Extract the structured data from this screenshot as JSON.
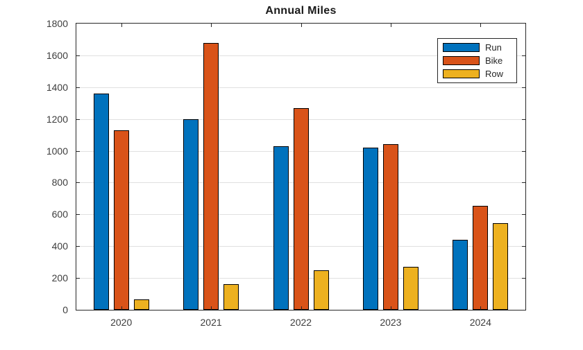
{
  "chart_data": {
    "type": "bar",
    "title": "Annual Miles",
    "categories": [
      "2020",
      "2021",
      "2022",
      "2023",
      "2024"
    ],
    "series": [
      {
        "name": "Run",
        "color": "#0072BD",
        "values": [
          1360,
          1200,
          1030,
          1020,
          440
        ]
      },
      {
        "name": "Bike",
        "color": "#D95319",
        "values": [
          1130,
          1680,
          1270,
          1040,
          655
        ]
      },
      {
        "name": "Row",
        "color": "#EDB120",
        "values": [
          65,
          160,
          250,
          270,
          545
        ]
      }
    ],
    "xlabel": "",
    "ylabel": "",
    "ylim": [
      0,
      1800
    ],
    "yticks": [
      0,
      200,
      400,
      600,
      800,
      1000,
      1200,
      1400,
      1600,
      1800
    ],
    "grid": "horizontal-only",
    "legend": {
      "position": "top-right",
      "entries": [
        "Run",
        "Bike",
        "Row"
      ]
    },
    "colors": {
      "axis": "#262626",
      "grid": "#e0e0e0",
      "bar_edge": "#000000",
      "tick_label": "#3d3d3d",
      "title": "#1a1a1a",
      "background": "#ffffff"
    }
  }
}
